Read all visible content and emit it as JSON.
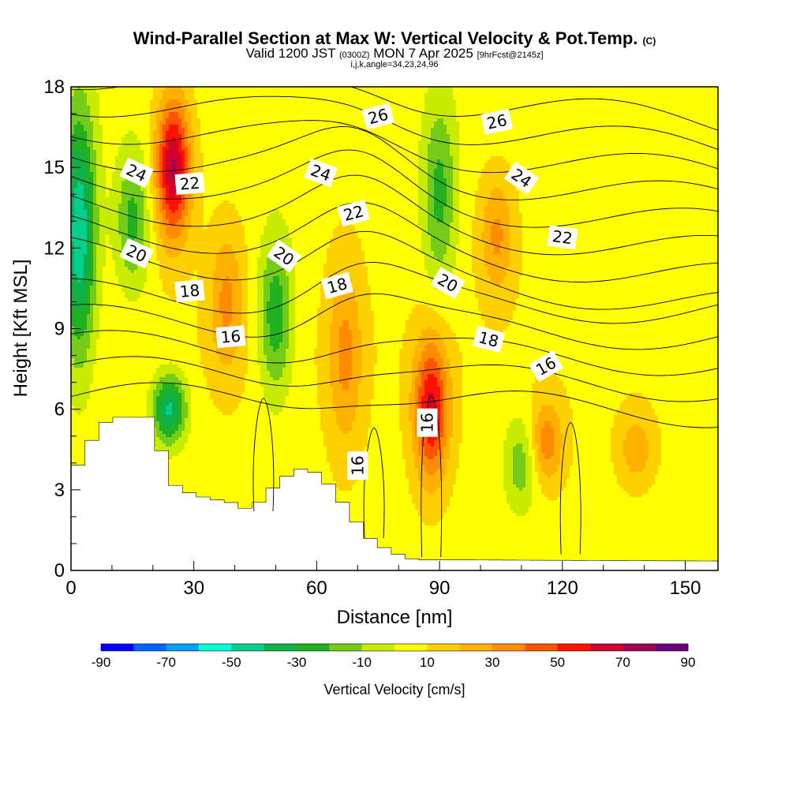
{
  "title": {
    "main": "Wind-Parallel Section at Max W: Vertical Velocity & Pot.Temp.",
    "main_badge": "(C)",
    "valid_prefix": "Valid 1200 JST",
    "valid_utc": "(0300Z)",
    "valid_date": "MON 7 Apr 2025",
    "forecast": "[9hrFcst@2145z]",
    "indices": "i,j,k,angle=34,23,24,96"
  },
  "colorbar": {
    "title": "Vertical Velocity [cm/s]",
    "tick_labels": [
      "-90",
      "-70",
      "-50",
      "-30",
      "-10",
      "10",
      "30",
      "50",
      "70",
      "90"
    ],
    "colors": [
      "#0000ff",
      "#0064ff",
      "#00a0ff",
      "#00ffd8",
      "#00d08c",
      "#10b048",
      "#20b020",
      "#74cc18",
      "#c8ec00",
      "#ffff00",
      "#ffd000",
      "#ffb000",
      "#ff8c00",
      "#ff5500",
      "#ff1000",
      "#d0002e",
      "#a00050",
      "#6a0080"
    ]
  },
  "chart_data": {
    "type": "heatmap",
    "title": "Wind-Parallel Section at Max W: Vertical Velocity & Pot.Temp.",
    "xlabel": "Distance [nm]",
    "ylabel": "Height [Kft MSL]",
    "xlim": [
      0,
      158
    ],
    "ylim": [
      0,
      18
    ],
    "x_ticks": [
      0,
      30,
      60,
      90,
      120,
      150
    ],
    "y_ticks": [
      0,
      3,
      6,
      9,
      12,
      15,
      18
    ],
    "colorbar_range": [
      -90,
      90
    ],
    "colorbar_interval": 10,
    "colorbar_units": "cm/s",
    "vertical_velocity_features": [
      {
        "x": 2,
        "y_range": [
          7,
          18
        ],
        "w": -55
      },
      {
        "x": 25,
        "y_range": [
          12,
          18
        ],
        "w": 65
      },
      {
        "x": 24,
        "y_range": [
          4.5,
          7.5
        ],
        "w": -50
      },
      {
        "x": 15,
        "y_range": [
          10,
          16
        ],
        "w": -30
      },
      {
        "x": 50,
        "y_range": [
          6,
          13
        ],
        "w": -35
      },
      {
        "x": 38,
        "y_range": [
          7,
          13
        ],
        "w": 25
      },
      {
        "x": 67,
        "y_range": [
          4,
          12
        ],
        "w": 25
      },
      {
        "x": 88,
        "y_range": [
          3,
          9
        ],
        "w": 55
      },
      {
        "x": 90,
        "y_range": [
          10,
          18
        ],
        "w": -30
      },
      {
        "x": 104,
        "y_range": [
          10,
          15
        ],
        "w": 25
      },
      {
        "x": 116,
        "y_range": [
          3,
          6.5
        ],
        "w": 30
      },
      {
        "x": 110,
        "y_range": [
          2,
          6
        ],
        "w": -25
      },
      {
        "x": 138,
        "y_range": [
          3,
          6
        ],
        "w": 20
      }
    ],
    "terrain_height_kft": [
      {
        "x": 0,
        "h": 3.8
      },
      {
        "x": 3,
        "h": 4.0
      },
      {
        "x": 6,
        "h": 5.2
      },
      {
        "x": 10,
        "h": 5.7
      },
      {
        "x": 20,
        "h": 5.7
      },
      {
        "x": 22,
        "h": 4.5
      },
      {
        "x": 25,
        "h": 3.2
      },
      {
        "x": 30,
        "h": 2.8
      },
      {
        "x": 40,
        "h": 2.5
      },
      {
        "x": 44,
        "h": 2.2
      },
      {
        "x": 48,
        "h": 2.9
      },
      {
        "x": 55,
        "h": 3.8
      },
      {
        "x": 61,
        "h": 3.6
      },
      {
        "x": 66,
        "h": 2.6
      },
      {
        "x": 72,
        "h": 1.3
      },
      {
        "x": 78,
        "h": 0.7
      },
      {
        "x": 84,
        "h": 0.4
      },
      {
        "x": 158,
        "h": 0.35
      }
    ],
    "potential_temperature_labels": [
      {
        "value": "26",
        "x": 75,
        "y": 16.9,
        "angle": -15
      },
      {
        "value": "26",
        "x": 104,
        "y": 16.7,
        "angle": -12
      },
      {
        "value": "24",
        "x": 16,
        "y": 14.8,
        "angle": 25
      },
      {
        "value": "24",
        "x": 61,
        "y": 14.8,
        "angle": 20
      },
      {
        "value": "24",
        "x": 110,
        "y": 14.6,
        "angle": 35
      },
      {
        "value": "22",
        "x": 29,
        "y": 14.4,
        "angle": -5
      },
      {
        "value": "22",
        "x": 69,
        "y": 13.3,
        "angle": -15
      },
      {
        "value": "22",
        "x": 120,
        "y": 12.4,
        "angle": 8
      },
      {
        "value": "20",
        "x": 16,
        "y": 11.8,
        "angle": 25
      },
      {
        "value": "20",
        "x": 52,
        "y": 11.7,
        "angle": 35
      },
      {
        "value": "20",
        "x": 92,
        "y": 10.7,
        "angle": 30
      },
      {
        "value": "18",
        "x": 29,
        "y": 10.4,
        "angle": -5
      },
      {
        "value": "18",
        "x": 65,
        "y": 10.6,
        "angle": -15
      },
      {
        "value": "18",
        "x": 102,
        "y": 8.6,
        "angle": 15
      },
      {
        "value": "16",
        "x": 39,
        "y": 8.7,
        "angle": -5
      },
      {
        "value": "16",
        "x": 116,
        "y": 7.6,
        "angle": -30
      },
      {
        "value": "16",
        "x": 87,
        "y": 5.5,
        "angle": -90
      },
      {
        "value": "16",
        "x": 70,
        "y": 3.9,
        "angle": -90
      }
    ]
  }
}
